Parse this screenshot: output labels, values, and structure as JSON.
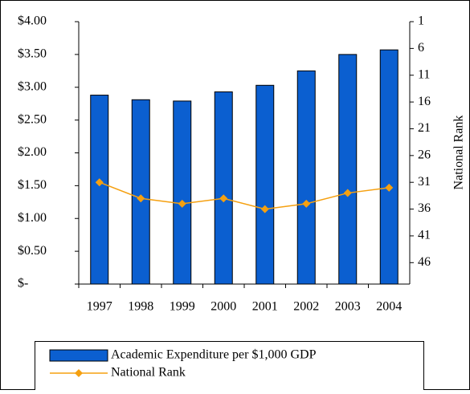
{
  "chart_data": {
    "type": "bar_line",
    "categories": [
      "1997",
      "1998",
      "1999",
      "2000",
      "2001",
      "2002",
      "2003",
      "2004"
    ],
    "series": [
      {
        "name": "Academic Expenditure per $1,000 GDP",
        "type": "bar",
        "color": "#0b5fd0",
        "values": [
          2.88,
          2.81,
          2.79,
          2.93,
          3.03,
          3.25,
          3.5,
          3.57
        ]
      },
      {
        "name": "National Rank",
        "type": "line",
        "color": "#f5a010",
        "axis": "y2",
        "values": [
          31,
          34,
          35,
          34,
          36,
          35,
          33,
          32
        ]
      }
    ],
    "ylim": [
      0,
      4
    ],
    "yticks": [
      {
        "value": 0,
        "label": "$-"
      },
      {
        "value": 0.5,
        "label": "$0.50"
      },
      {
        "value": 1,
        "label": "$1.00"
      },
      {
        "value": 1.5,
        "label": "$1.50"
      },
      {
        "value": 2,
        "label": "$2.00"
      },
      {
        "value": 2.5,
        "label": "$2.50"
      },
      {
        "value": 3,
        "label": "$3.00"
      },
      {
        "value": 3.5,
        "label": "$3.50"
      },
      {
        "value": 4,
        "label": "$4.00"
      }
    ],
    "y2lim": [
      1,
      50
    ],
    "y2_inverted": true,
    "y2ticks": [
      1,
      6,
      11,
      16,
      21,
      26,
      31,
      36,
      41,
      46
    ],
    "y2label": "National Rank",
    "legend": "bottom"
  }
}
